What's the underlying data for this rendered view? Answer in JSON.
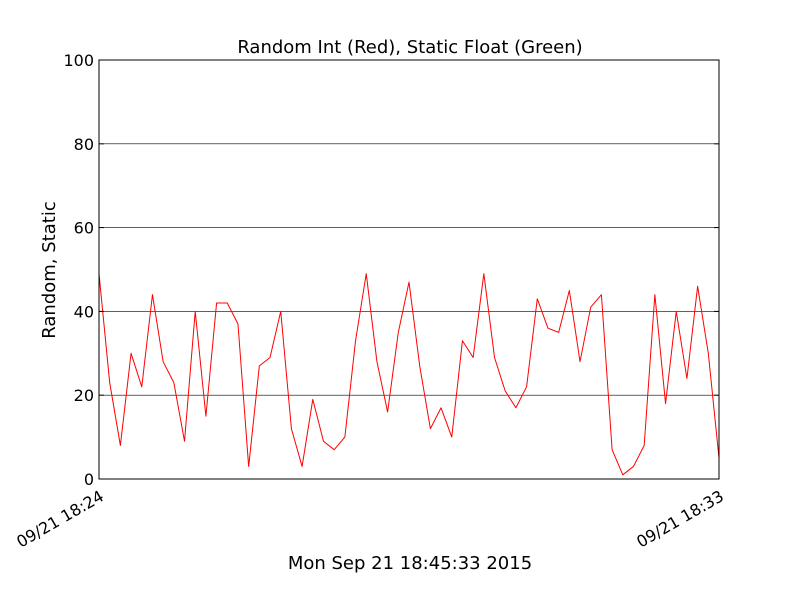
{
  "chart_data": {
    "type": "line",
    "title": "Random Int (Red), Static Float (Green)",
    "xlabel": "Mon Sep 21 18:45:33 2015",
    "ylabel": "Random, Static",
    "ylim": [
      0,
      100
    ],
    "yticks": [
      0,
      20,
      40,
      60,
      80,
      100
    ],
    "xtick_labels": [
      "09/21 18:24",
      "09/21 18:33"
    ],
    "grid": "horizontal",
    "series": [
      {
        "color": "#ff0000",
        "values": [
          49,
          23,
          8,
          30,
          22,
          44,
          28,
          23,
          9,
          40,
          15,
          42,
          42,
          37,
          3,
          27,
          29,
          40,
          12,
          3,
          19,
          9,
          7,
          10,
          33,
          49,
          28,
          16,
          35,
          47,
          27,
          12,
          17,
          10,
          33,
          29,
          49,
          29,
          21,
          17,
          22,
          43,
          36,
          35,
          45,
          28,
          41,
          44,
          7,
          1,
          3,
          8,
          44,
          18,
          40,
          24,
          46,
          30,
          5
        ]
      }
    ]
  }
}
